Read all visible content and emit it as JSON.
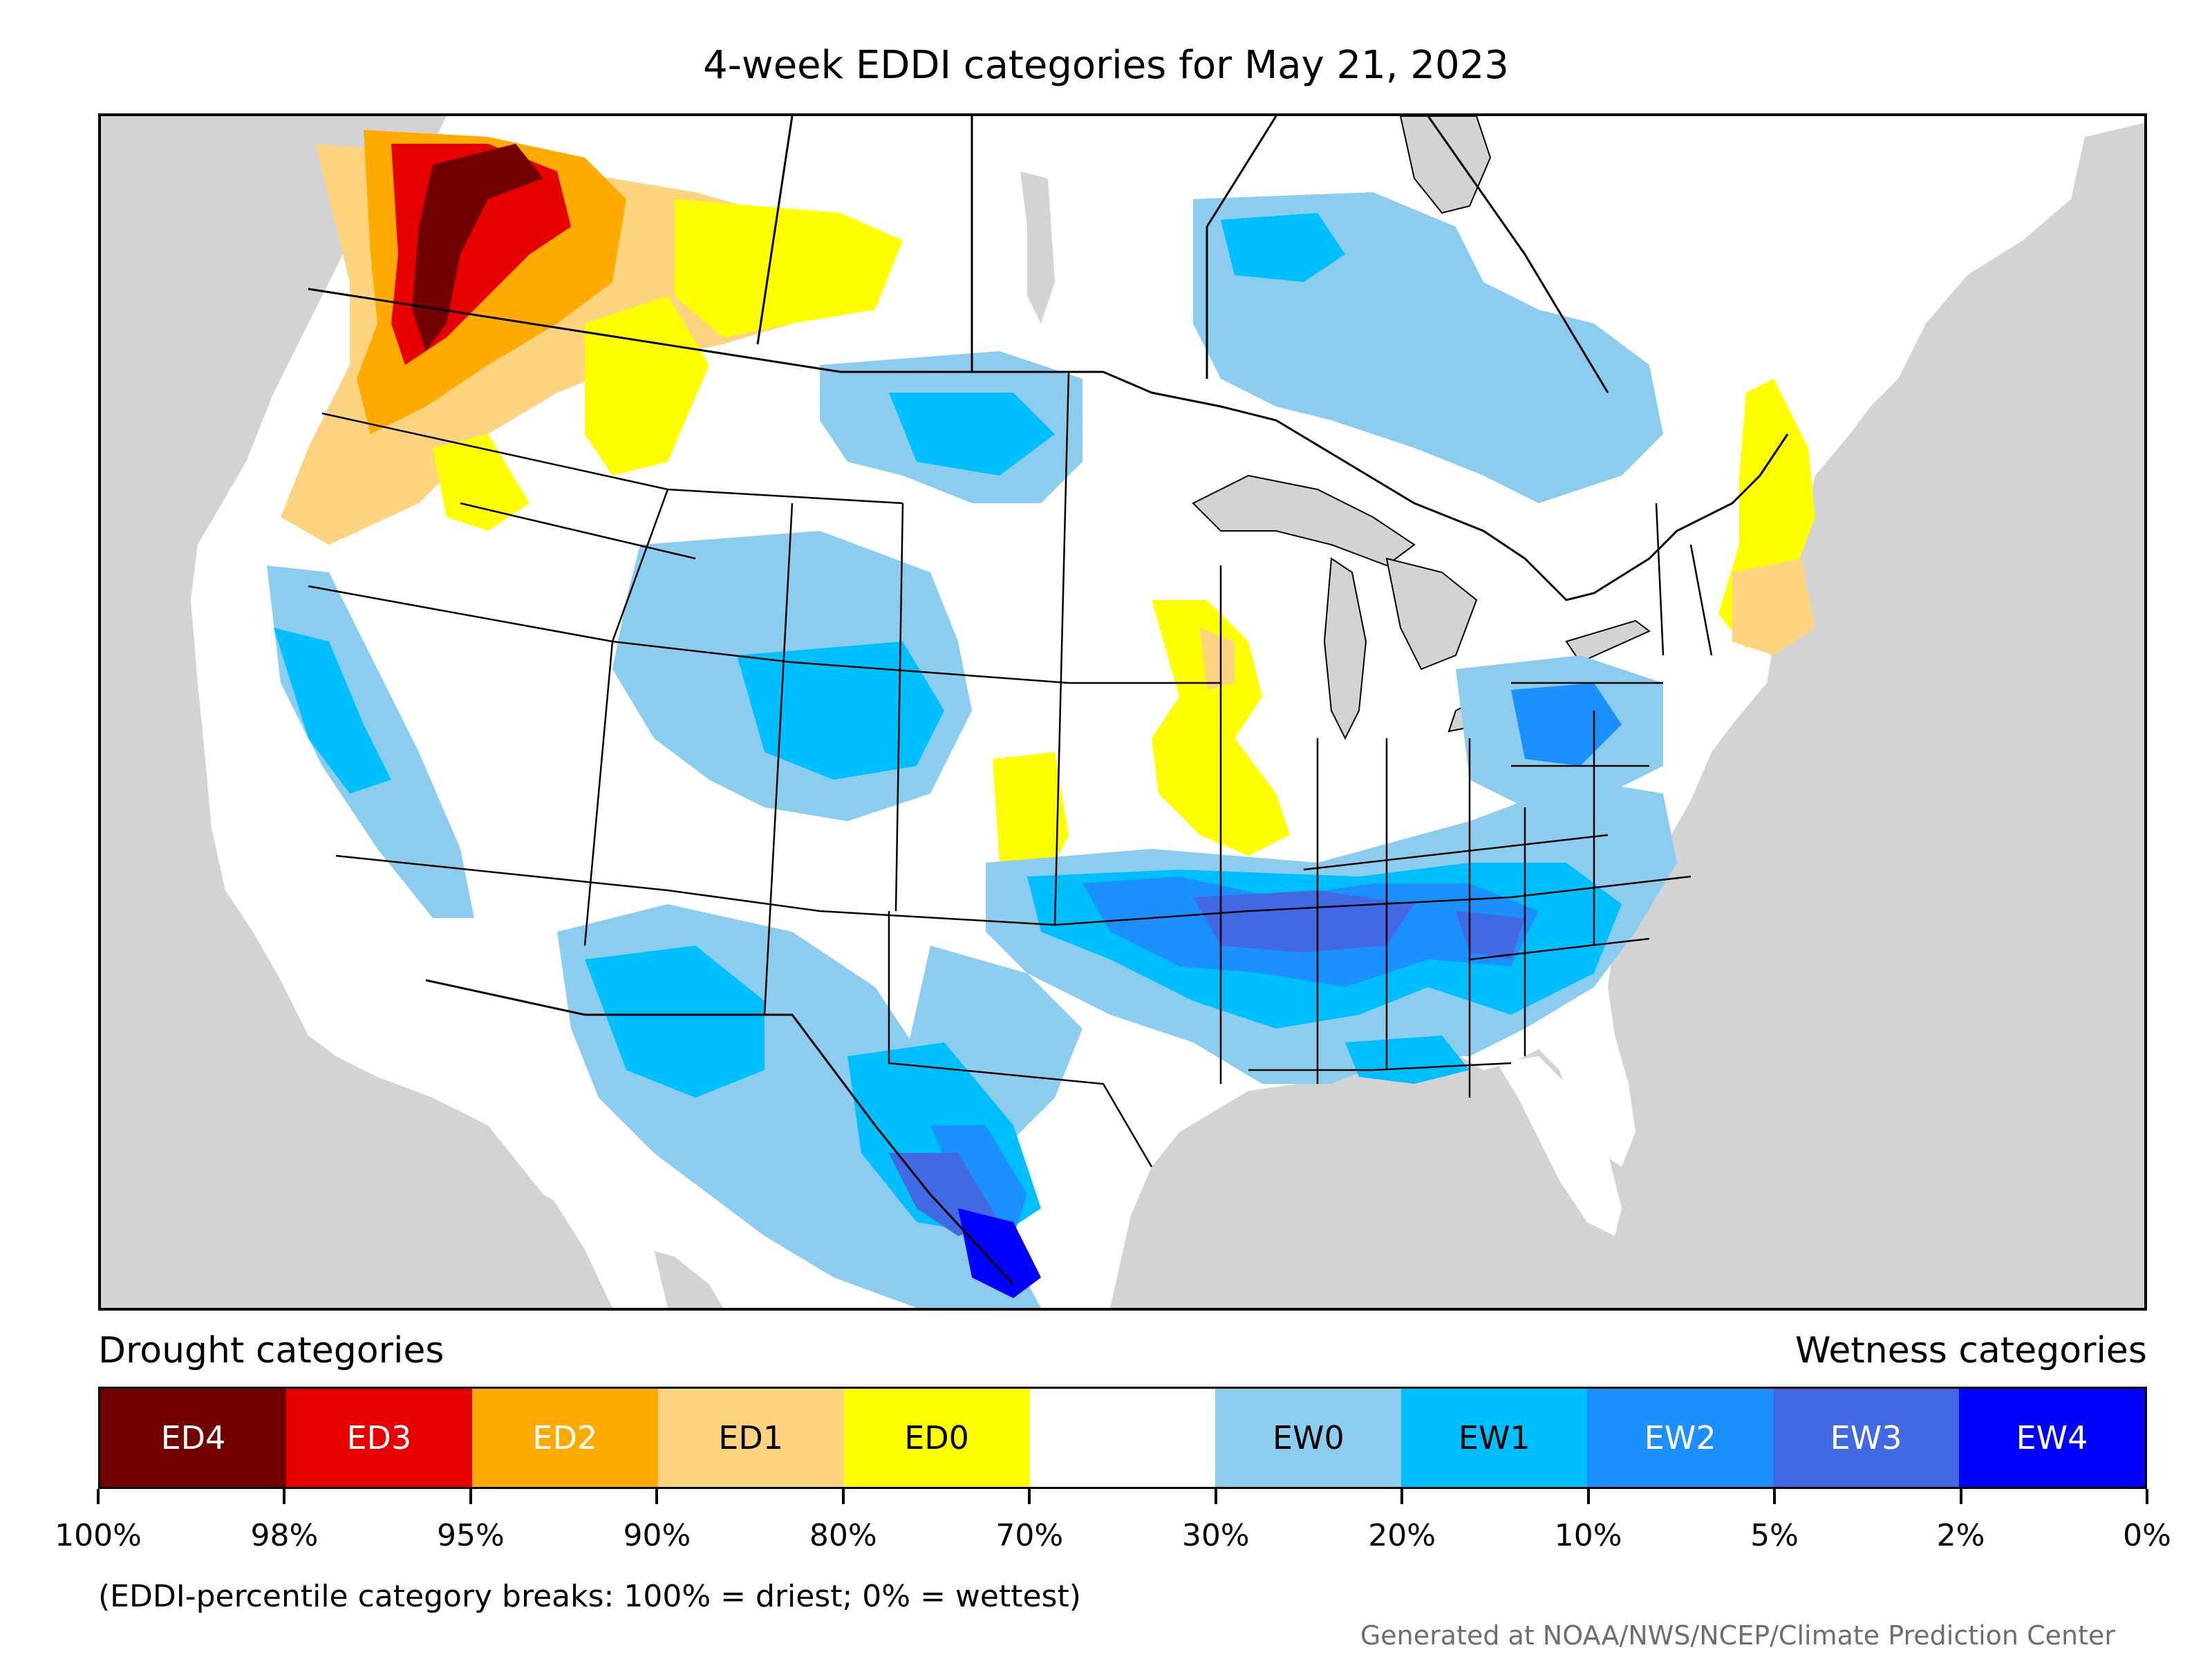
{
  "title": "4-week EDDI categories for May 21, 2023",
  "legend": {
    "drought_header": "Drought categories",
    "wetness_header": "Wetness categories",
    "categories": [
      {
        "label": "ED4",
        "color": "#730000",
        "text_color": "#ffffff"
      },
      {
        "label": "ED3",
        "color": "#e60000",
        "text_color": "#ffffff"
      },
      {
        "label": "ED2",
        "color": "#ffaa00",
        "text_color": "#ffffff"
      },
      {
        "label": "ED1",
        "color": "#fcd37f",
        "text_color": "#000000"
      },
      {
        "label": "ED0",
        "color": "#ffff00",
        "text_color": "#000000"
      },
      {
        "label": "",
        "color": "#ffffff",
        "text_color": "#000000"
      },
      {
        "label": "EW0",
        "color": "#8ccdef",
        "text_color": "#000000"
      },
      {
        "label": "EW1",
        "color": "#00bfff",
        "text_color": "#000000"
      },
      {
        "label": "EW2",
        "color": "#1d90ff",
        "text_color": "#ffffff"
      },
      {
        "label": "EW3",
        "color": "#4169e1",
        "text_color": "#ffffff"
      },
      {
        "label": "EW4",
        "color": "#0000ff",
        "text_color": "#ffffff"
      }
    ],
    "breaks": [
      "100%",
      "98%",
      "95%",
      "90%",
      "80%",
      "70%",
      "30%",
      "20%",
      "10%",
      "5%",
      "2%",
      "0%"
    ]
  },
  "note": "(EDDI-percentile category breaks: 100% = driest; 0% = wettest)",
  "credit": "Generated at NOAA/NWS/NCEP/Climate Prediction Center",
  "map": {
    "background_color": "#d3d3d3",
    "land_color": "#ffffff",
    "border_color": "#000000"
  }
}
